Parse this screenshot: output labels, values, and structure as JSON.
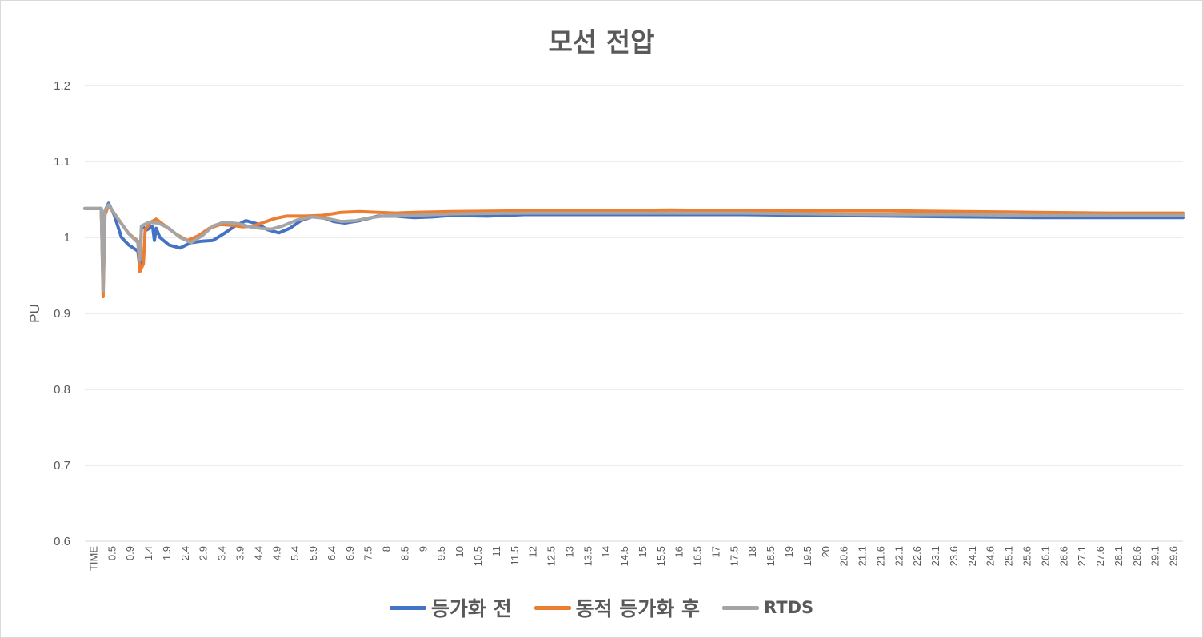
{
  "chart_data": {
    "type": "line",
    "title": "모선 전압",
    "ylabel": "PU",
    "ylim": [
      0.6,
      1.2
    ],
    "y_ticks": [
      "0.6",
      "0.7",
      "0.8",
      "0.9",
      "1",
      "1.1",
      "1.2"
    ],
    "x_first_label": "TIME",
    "x_tick_labels": [
      "0.5",
      "0.9",
      "1.4",
      "1.9",
      "2.4",
      "2.9",
      "3.4",
      "3.9",
      "4.4",
      "4.9",
      "5.4",
      "5.9",
      "6.4",
      "6.9",
      "7.5",
      "8",
      "8.5",
      "9",
      "9.5",
      "10",
      "10.5",
      "11",
      "11.5",
      "12",
      "12.5",
      "13",
      "13.5",
      "14",
      "14.5",
      "15",
      "15.5",
      "16",
      "16.5",
      "17",
      "17.5",
      "18",
      "18.5",
      "19",
      "19.5",
      "20",
      "20.6",
      "21.1",
      "21.6",
      "22.1",
      "22.6",
      "23.1",
      "23.6",
      "24.1",
      "24.6",
      "25.1",
      "25.6",
      "26.1",
      "26.6",
      "27.1",
      "27.6",
      "28.1",
      "28.6",
      "29.1",
      "29.6"
    ],
    "xlim": [
      0,
      30
    ],
    "grid": true,
    "legend_position": "bottom",
    "series": [
      {
        "name": "등가화 전",
        "color": "#4472c4",
        "points": [
          [
            0,
            1.038
          ],
          [
            0.45,
            1.038
          ],
          [
            0.5,
            0.94
          ],
          [
            0.55,
            1.035
          ],
          [
            0.65,
            1.045
          ],
          [
            0.8,
            1.03
          ],
          [
            1.0,
            1.0
          ],
          [
            1.2,
            0.99
          ],
          [
            1.45,
            0.982
          ],
          [
            1.5,
            0.96
          ],
          [
            1.55,
            1.015
          ],
          [
            1.7,
            1.01
          ],
          [
            1.85,
            1.015
          ],
          [
            1.9,
            0.996
          ],
          [
            1.95,
            1.012
          ],
          [
            2.05,
            1.0
          ],
          [
            2.3,
            0.99
          ],
          [
            2.6,
            0.986
          ],
          [
            2.9,
            0.993
          ],
          [
            3.2,
            0.995
          ],
          [
            3.5,
            0.996
          ],
          [
            3.8,
            1.005
          ],
          [
            4.1,
            1.015
          ],
          [
            4.4,
            1.022
          ],
          [
            4.7,
            1.018
          ],
          [
            5.0,
            1.01
          ],
          [
            5.3,
            1.006
          ],
          [
            5.6,
            1.012
          ],
          [
            5.9,
            1.022
          ],
          [
            6.2,
            1.027
          ],
          [
            6.5,
            1.026
          ],
          [
            6.8,
            1.021
          ],
          [
            7.1,
            1.019
          ],
          [
            7.5,
            1.022
          ],
          [
            8.0,
            1.028
          ],
          [
            8.5,
            1.028
          ],
          [
            9.0,
            1.026
          ],
          [
            9.5,
            1.027
          ],
          [
            10.0,
            1.029
          ],
          [
            11.0,
            1.028
          ],
          [
            12.0,
            1.03
          ],
          [
            14.0,
            1.03
          ],
          [
            16.0,
            1.03
          ],
          [
            18.0,
            1.03
          ],
          [
            20.0,
            1.029
          ],
          [
            22.0,
            1.028
          ],
          [
            24.0,
            1.027
          ],
          [
            26.0,
            1.026
          ],
          [
            28.0,
            1.026
          ],
          [
            30.0,
            1.026
          ]
        ]
      },
      {
        "name": "동적 등가화 후",
        "color": "#ed7d31",
        "points": [
          [
            0,
            1.038
          ],
          [
            0.45,
            1.038
          ],
          [
            0.5,
            0.922
          ],
          [
            0.55,
            1.03
          ],
          [
            0.65,
            1.042
          ],
          [
            0.9,
            1.025
          ],
          [
            1.2,
            1.005
          ],
          [
            1.45,
            0.995
          ],
          [
            1.5,
            0.955
          ],
          [
            1.6,
            0.965
          ],
          [
            1.65,
            1.01
          ],
          [
            1.8,
            1.02
          ],
          [
            1.95,
            1.024
          ],
          [
            2.2,
            1.015
          ],
          [
            2.5,
            1.004
          ],
          [
            2.8,
            0.996
          ],
          [
            3.1,
            1.002
          ],
          [
            3.4,
            1.012
          ],
          [
            3.7,
            1.017
          ],
          [
            4.0,
            1.016
          ],
          [
            4.3,
            1.014
          ],
          [
            4.6,
            1.015
          ],
          [
            4.9,
            1.02
          ],
          [
            5.2,
            1.025
          ],
          [
            5.5,
            1.028
          ],
          [
            6.0,
            1.028
          ],
          [
            6.5,
            1.029
          ],
          [
            7.0,
            1.033
          ],
          [
            7.5,
            1.034
          ],
          [
            8.0,
            1.033
          ],
          [
            8.5,
            1.032
          ],
          [
            9.0,
            1.033
          ],
          [
            10.0,
            1.034
          ],
          [
            12.0,
            1.035
          ],
          [
            14.0,
            1.035
          ],
          [
            16.0,
            1.036
          ],
          [
            18.0,
            1.035
          ],
          [
            20.0,
            1.035
          ],
          [
            22.0,
            1.035
          ],
          [
            24.0,
            1.034
          ],
          [
            26.0,
            1.033
          ],
          [
            28.0,
            1.032
          ],
          [
            30.0,
            1.032
          ]
        ]
      },
      {
        "name": "RTDS",
        "color": "#a5a5a5",
        "points": [
          [
            0,
            1.038
          ],
          [
            0.45,
            1.038
          ],
          [
            0.5,
            0.93
          ],
          [
            0.55,
            1.035
          ],
          [
            0.65,
            1.043
          ],
          [
            0.9,
            1.025
          ],
          [
            1.2,
            1.005
          ],
          [
            1.45,
            0.993
          ],
          [
            1.5,
            0.97
          ],
          [
            1.55,
            1.015
          ],
          [
            1.75,
            1.02
          ],
          [
            2.0,
            1.019
          ],
          [
            2.3,
            1.012
          ],
          [
            2.6,
            1.0
          ],
          [
            2.9,
            0.993
          ],
          [
            3.2,
            1.002
          ],
          [
            3.5,
            1.015
          ],
          [
            3.8,
            1.02
          ],
          [
            4.2,
            1.018
          ],
          [
            4.5,
            1.014
          ],
          [
            4.8,
            1.012
          ],
          [
            5.1,
            1.011
          ],
          [
            5.4,
            1.015
          ],
          [
            5.8,
            1.023
          ],
          [
            6.2,
            1.027
          ],
          [
            6.6,
            1.025
          ],
          [
            7.0,
            1.021
          ],
          [
            7.4,
            1.022
          ],
          [
            7.8,
            1.026
          ],
          [
            8.3,
            1.029
          ],
          [
            9.0,
            1.029
          ],
          [
            10.0,
            1.031
          ],
          [
            12.0,
            1.032
          ],
          [
            14.0,
            1.032
          ],
          [
            16.0,
            1.032
          ],
          [
            18.0,
            1.032
          ],
          [
            20.0,
            1.031
          ],
          [
            22.0,
            1.03
          ],
          [
            24.0,
            1.03
          ],
          [
            26.0,
            1.029
          ],
          [
            28.0,
            1.029
          ],
          [
            30.0,
            1.029
          ]
        ]
      }
    ]
  }
}
